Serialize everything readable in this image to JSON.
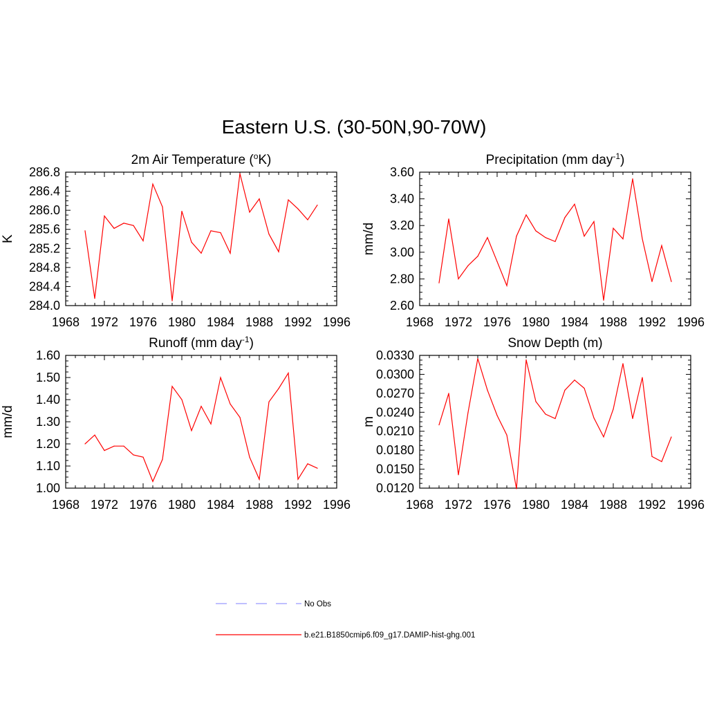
{
  "figure": {
    "title": "Eastern U.S. (30-50N,90-70W)",
    "line_color": "#ff0000",
    "obs_color": "#9999ff"
  },
  "legend": {
    "placement": "bottom-center",
    "entries": [
      {
        "label": "No Obs",
        "style": "dashed",
        "color": "#9999ff"
      },
      {
        "label": "b.e21.B1850cmip6.f09_g17.DAMIP-hist-ghg.001",
        "style": "solid",
        "color": "#ff0000"
      }
    ]
  },
  "chart_data": [
    {
      "type": "line",
      "title_main": "2m Air Temperature (",
      "title_sup1": "o",
      "title_after": "K)",
      "ylabel": "K",
      "xlim": [
        1968,
        1996
      ],
      "ylim": [
        284.0,
        286.8
      ],
      "xticks": [
        "1968",
        "1972",
        "1976",
        "1980",
        "1984",
        "1988",
        "1992",
        "1996"
      ],
      "yticks": [
        "284.0",
        "284.4",
        "284.8",
        "285.2",
        "285.6",
        "286.0",
        "286.4",
        "286.8"
      ],
      "x": [
        1970,
        1971,
        1972,
        1973,
        1974,
        1975,
        1976,
        1977,
        1978,
        1979,
        1980,
        1981,
        1982,
        1983,
        1984,
        1985,
        1986,
        1987,
        1988,
        1989,
        1990,
        1991,
        1992,
        1993,
        1994
      ],
      "series": [
        {
          "values": [
            285.57,
            284.15,
            285.88,
            285.62,
            285.73,
            285.68,
            285.36,
            286.55,
            286.07,
            284.1,
            285.98,
            285.33,
            285.1,
            285.57,
            285.53,
            285.1,
            286.77,
            285.96,
            286.24,
            285.5,
            285.13,
            286.22,
            286.03,
            285.8,
            286.11
          ]
        }
      ]
    },
    {
      "type": "line",
      "title_main": "Precipitation (mm day",
      "title_sup2": "-1",
      "title_after2": ")",
      "ylabel": "mm/d",
      "xlim": [
        1968,
        1996
      ],
      "ylim": [
        2.6,
        3.6
      ],
      "xticks": [
        "1968",
        "1972",
        "1976",
        "1980",
        "1984",
        "1988",
        "1992",
        "1996"
      ],
      "yticks": [
        "2.60",
        "2.80",
        "3.00",
        "3.20",
        "3.40",
        "3.60"
      ],
      "x": [
        1970,
        1971,
        1972,
        1973,
        1974,
        1975,
        1976,
        1977,
        1978,
        1979,
        1980,
        1981,
        1982,
        1983,
        1984,
        1985,
        1986,
        1987,
        1988,
        1989,
        1990,
        1991,
        1992,
        1993,
        1994
      ],
      "series": [
        {
          "values": [
            2.77,
            3.25,
            2.8,
            2.9,
            2.97,
            3.11,
            2.93,
            2.75,
            3.12,
            3.28,
            3.16,
            3.11,
            3.08,
            3.26,
            3.36,
            3.12,
            3.23,
            2.64,
            3.18,
            3.1,
            3.55,
            3.1,
            2.78,
            3.05,
            2.78
          ]
        }
      ]
    },
    {
      "type": "line",
      "title_main": "Runoff (mm day",
      "title_sup2": "-1",
      "title_after2": ")",
      "ylabel": "mm/d",
      "xlim": [
        1968,
        1996
      ],
      "ylim": [
        1.0,
        1.6
      ],
      "xticks": [
        "1968",
        "1972",
        "1976",
        "1980",
        "1984",
        "1988",
        "1992",
        "1996"
      ],
      "yticks": [
        "1.00",
        "1.10",
        "1.20",
        "1.30",
        "1.40",
        "1.50",
        "1.60"
      ],
      "x": [
        1970,
        1971,
        1972,
        1973,
        1974,
        1975,
        1976,
        1977,
        1978,
        1979,
        1980,
        1981,
        1982,
        1983,
        1984,
        1985,
        1986,
        1987,
        1988,
        1989,
        1990,
        1991,
        1992,
        1993,
        1994
      ],
      "series": [
        {
          "values": [
            1.2,
            1.24,
            1.17,
            1.19,
            1.19,
            1.15,
            1.14,
            1.03,
            1.13,
            1.46,
            1.4,
            1.26,
            1.37,
            1.29,
            1.5,
            1.38,
            1.32,
            1.14,
            1.04,
            1.39,
            1.45,
            1.52,
            1.04,
            1.11,
            1.09
          ]
        }
      ]
    },
    {
      "type": "line",
      "title_main": "Snow Depth (m)",
      "ylabel": "m",
      "xlim": [
        1968,
        1996
      ],
      "ylim": [
        0.012,
        0.033
      ],
      "xticks": [
        "1968",
        "1972",
        "1976",
        "1980",
        "1984",
        "1988",
        "1992",
        "1996"
      ],
      "yticks": [
        "0.0120",
        "0.0150",
        "0.0180",
        "0.0210",
        "0.0240",
        "0.0270",
        "0.0300",
        "0.0330"
      ],
      "x": [
        1970,
        1971,
        1972,
        1973,
        1974,
        1975,
        1976,
        1977,
        1978,
        1979,
        1980,
        1981,
        1982,
        1983,
        1984,
        1985,
        1986,
        1987,
        1988,
        1989,
        1990,
        1991,
        1992,
        1993,
        1994
      ],
      "series": [
        {
          "values": [
            0.022,
            0.027,
            0.0141,
            0.024,
            0.0325,
            0.0275,
            0.0235,
            0.0204,
            0.0119,
            0.0323,
            0.0257,
            0.0237,
            0.023,
            0.0275,
            0.0291,
            0.0278,
            0.0231,
            0.0201,
            0.0245,
            0.0317,
            0.023,
            0.0295,
            0.017,
            0.0162,
            0.0201
          ]
        }
      ]
    }
  ]
}
